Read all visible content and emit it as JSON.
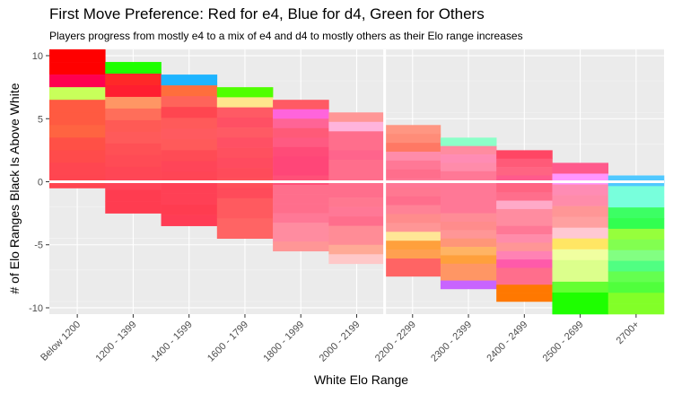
{
  "chart_data": {
    "type": "heatmap",
    "title": "First Move Preference: Red for e4, Blue for d4, Green for Others",
    "subtitle": "Players progress from mostly e4 to a mix of e4 and d4 to mostly others as their Elo range increases",
    "xlabel": "White Elo Range",
    "ylabel": "# of Elo Ranges Black Is Above White",
    "x_categories": [
      "Below 1200",
      "1200 - 1399",
      "1400 - 1599",
      "1600 - 1799",
      "1800 - 1999",
      "2000 - 2199",
      "2200 - 2299",
      "2300 - 2399",
      "2400 - 2499",
      "2500 - 2699",
      "2700+"
    ],
    "y_ticks": [
      10,
      5,
      0,
      -5,
      -10
    ],
    "ylim": [
      -10.5,
      10.5
    ],
    "grid": true,
    "columns": [
      {
        "x": "Below 1200",
        "ymin": 0,
        "ymax": 10,
        "colors": [
          "#ff0000",
          "#ff0000",
          "#ff0050",
          "#c8ff5a",
          "#ff5a41",
          "#ff5a41",
          "#ff6441",
          "#ff5046",
          "#ff4b4b",
          "#ff4650",
          "#ff4550"
        ]
      },
      {
        "x": "1200 - 1399",
        "ymin": -2,
        "ymax": 9,
        "colors": [
          "#1eff00",
          "#ff2828",
          "#ff1e30",
          "#ff9664",
          "#ff6e5a",
          "#ff5a55",
          "#ff5a5a",
          "#ff5055",
          "#ff4b55",
          "#ff4655",
          "#ff4558",
          "#ff3c50",
          "#ff3c50"
        ]
      },
      {
        "x": "1400 - 1599",
        "ymin": -3,
        "ymax": 8,
        "colors": [
          "#1eb4ff",
          "#ff6e3c",
          "#ff645a",
          "#ff4650",
          "#ff5a5a",
          "#ff5a5f",
          "#ff5a5a",
          "#ff4b55",
          "#ff4558",
          "#ff4555",
          "#ff4055",
          "#ff4055",
          "#ff3c50",
          "#ff3c55"
        ]
      },
      {
        "x": "1600 - 1799",
        "ymin": -4,
        "ymax": 7,
        "colors": [
          "#50ff00",
          "#ffe68c",
          "#ff5a64",
          "#ff5064",
          "#ff5a64",
          "#ff5064",
          "#ff505f",
          "#ff4b5f",
          "#ff4b5a",
          "#ff505a",
          "#ff4b5a",
          "#ff5a5f",
          "#ff5a5f",
          "#ff6464",
          "#ff6464"
        ]
      },
      {
        "x": "1800 - 1999",
        "ymin": -5,
        "ymax": 6,
        "colors": [
          "#ff5a64",
          "#ff64dc",
          "#ff6496",
          "#ff5a78",
          "#ff5a82",
          "#ff4b78",
          "#ff4678",
          "#ff4678",
          "#ff5078",
          "#ff6e8c",
          "#ff6e8c",
          "#ff6e8c",
          "#ff7896",
          "#ff8ca0",
          "#ff8ca0",
          "#ff9696"
        ]
      },
      {
        "x": "2000 - 2199",
        "ymin": -6,
        "ymax": 5,
        "colors": [
          "#ff9696",
          "#ffb4dc",
          "#ff6e8c",
          "#ff6e8c",
          "#ff648c",
          "#ff6e8c",
          "#ff6e8c",
          "#ff6e8c",
          "#ff6e8c",
          "#ff7890",
          "#ff7896",
          "#ff6e8c",
          "#ff8c96",
          "#ff8c96",
          "#ffaa96",
          "#ffc8c8"
        ]
      },
      {
        "x": "2200 - 2299",
        "ymin": -7,
        "ymax": 4,
        "colors": [
          "#ff9682",
          "#ff8c78",
          "#ff7864",
          "#ff8caa",
          "#ff7896",
          "#ff6e8c",
          "#ff7896",
          "#ff7891",
          "#ff6e8c",
          "#ff8296",
          "#ff8c8c",
          "#ff9696",
          "#ffe696",
          "#ffa03c",
          "#ffa050",
          "#ff6464",
          "#ff6464"
        ]
      },
      {
        "x": "2300 - 2399",
        "ymin": -8,
        "ymax": 3,
        "colors": [
          "#8cffc8",
          "#ff8ca0",
          "#ff8cb4",
          "#ff8caa",
          "#ff7896",
          "#ff7896",
          "#ff7896",
          "#ff7896",
          "#ff7896",
          "#ff8c96",
          "#ff8c8c",
          "#ff9696",
          "#ff9678",
          "#ffb464",
          "#ffa03c",
          "#ff9664",
          "#ff9664",
          "#c864ff"
        ]
      },
      {
        "x": "2400 - 2499",
        "ymin": -9,
        "ymax": 2,
        "colors": [
          "#ff4664",
          "#ff5a78",
          "#ff6482",
          "#ff5a8c",
          "#ff6482",
          "#ff6e8c",
          "#ffaac8",
          "#ff8ca0",
          "#ff8ca0",
          "#ff7896",
          "#ff8caa",
          "#ff9696",
          "#ff82b4",
          "#ff5aaa",
          "#ff6e8c",
          "#ff6e8c",
          "#ff7800",
          "#ff7800"
        ]
      },
      {
        "x": "2500 - 2699",
        "ymin": -10,
        "ymax": 1,
        "colors": [
          "#ff5a8c",
          "#ff96ff",
          "#ff8cb4",
          "#ff8caa",
          "#ff9696",
          "#ffa0a0",
          "#ffc8d2",
          "#ffe664",
          "#f0ffa0",
          "#dcff8c",
          "#dcff8c",
          "#64ff32",
          "#1eff00",
          "#1eff00"
        ]
      },
      {
        "x": "2700+",
        "ymin": -10,
        "ymax": 0,
        "colors": [
          "#50c8ff",
          "#78ffdc",
          "#78ffdc",
          "#3cff64",
          "#32ff50",
          "#96ff3c",
          "#82ff50",
          "#82ff82",
          "#50ff82",
          "#64ff50",
          "#50ff3c",
          "#82ff28",
          "#82ff28"
        ]
      }
    ]
  }
}
